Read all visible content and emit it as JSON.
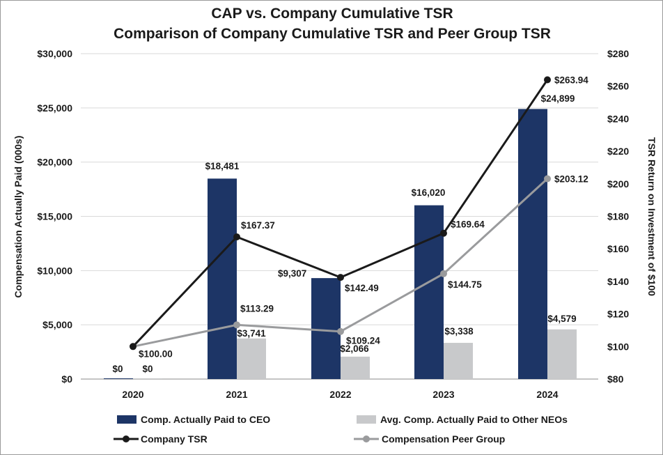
{
  "chart_data": {
    "type": "bar",
    "title": "CAP vs. Company Cumulative TSR",
    "subtitle": "Comparison of Company Cumulative TSR and Peer Group TSR",
    "categories": [
      "2020",
      "2021",
      "2022",
      "2023",
      "2024"
    ],
    "ylabel": "Compensation Actually Paid (000s)",
    "y2label": "TSR Return on Investment of $100",
    "ylim": [
      0,
      30000
    ],
    "y2lim": [
      80,
      280
    ],
    "yticks": [
      "$0",
      "$5,000",
      "$10,000",
      "$15,000",
      "$20,000",
      "$25,000",
      "$30,000"
    ],
    "y2ticks": [
      "$80",
      "$100",
      "$120",
      "$140",
      "$160",
      "$180",
      "$200",
      "$220",
      "$240",
      "$260",
      "$280"
    ],
    "grid": true,
    "legend_position": "bottom",
    "bar_series": [
      {
        "name": "Comp. Actually Paid to CEO",
        "color": "#1d3566",
        "values": [
          0,
          18481,
          9307,
          16020,
          24899
        ],
        "labels": [
          "$0",
          "$18,481",
          "$9,307",
          "$16,020",
          "$24,899"
        ]
      },
      {
        "name": "Avg. Comp. Actually Paid to Other NEOs",
        "color": "#c8c9cb",
        "values": [
          0,
          3741,
          2066,
          3338,
          4579
        ],
        "labels": [
          "$0",
          "$3,741",
          "$2,066",
          "$3,338",
          "$4,579"
        ]
      }
    ],
    "line_series": [
      {
        "name": "Company TSR",
        "color": "#1a1a1a",
        "values": [
          100.0,
          167.37,
          142.49,
          169.64,
          263.94
        ],
        "labels": [
          "$100.00",
          "$167.37",
          "$142.49",
          "$169.64",
          "$263.94"
        ]
      },
      {
        "name": "Compensation Peer Group",
        "color": "#9a9b9d",
        "values": [
          100.0,
          113.29,
          109.24,
          144.75,
          203.12
        ],
        "labels": [
          "$100.00",
          "$113.29",
          "$109.24",
          "$144.75",
          "$203.12"
        ]
      }
    ]
  }
}
